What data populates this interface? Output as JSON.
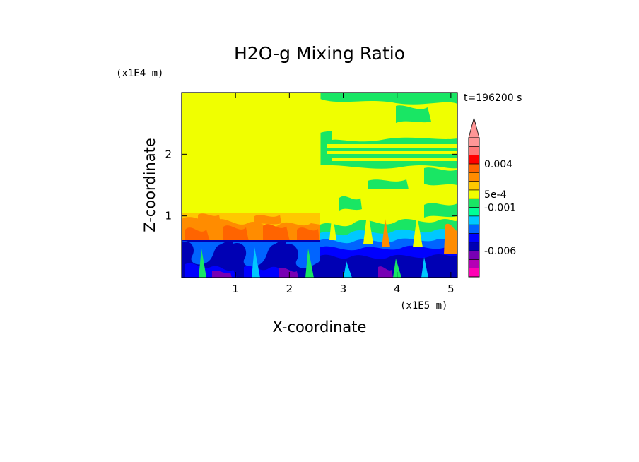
{
  "chart_data": {
    "type": "heatmap",
    "title": "H2O-g Mixing Ratio",
    "xlabel": "X-coordinate",
    "ylabel": "Z-coordinate",
    "x_scale_label": "(x1E5 m)",
    "y_scale_label": "(x1E4 m)",
    "time_label": "t=196200 s",
    "xlim": [
      0,
      5.12
    ],
    "ylim": [
      0,
      3.0
    ],
    "x_ticks": [
      {
        "value": 1,
        "label": "1"
      },
      {
        "value": 2,
        "label": "2"
      },
      {
        "value": 3,
        "label": "3"
      },
      {
        "value": 4,
        "label": "4"
      },
      {
        "value": 5,
        "label": "5"
      }
    ],
    "y_ticks": [
      {
        "value": 1,
        "label": "1"
      },
      {
        "value": 2,
        "label": "2"
      }
    ],
    "colorbar": {
      "levels": [
        {
          "color": "#ff00b4"
        },
        {
          "color": "#b400b4"
        },
        {
          "color": "#7800b4"
        },
        {
          "color": "#0000b4"
        },
        {
          "color": "#0000ff"
        },
        {
          "color": "#0064ff"
        },
        {
          "color": "#00c8ff"
        },
        {
          "color": "#00ff96"
        },
        {
          "color": "#19e664"
        },
        {
          "color": "#f0ff00"
        },
        {
          "color": "#ffc800"
        },
        {
          "color": "#ff8c00"
        },
        {
          "color": "#ff6400"
        },
        {
          "color": "#ff0000"
        },
        {
          "color": "#ff7878"
        },
        {
          "color": "#ff9696"
        }
      ],
      "labels": [
        {
          "label": "0.004",
          "level": 13
        },
        {
          "label": "5e-4",
          "level": 9.5
        },
        {
          "label": "-0.001",
          "level": 8
        },
        {
          "label": "-0.006",
          "level": 3
        }
      ],
      "extend_top": true
    },
    "regions": [
      {
        "name": "background",
        "x": [
          0,
          5.12
        ],
        "z": [
          0,
          3.0
        ],
        "color": "#f0ff00"
      },
      {
        "name": "upper-right-green",
        "x": [
          2.6,
          5.12
        ],
        "z": [
          1.5,
          3.0
        ],
        "color": "#19e664"
      },
      {
        "name": "lower-mixed-layer",
        "x": [
          0,
          5.12
        ],
        "z": [
          0,
          0.6
        ],
        "color": "#0000b4"
      },
      {
        "name": "boundary-orange",
        "x": [
          0,
          2.6
        ],
        "z": [
          0.55,
          1.0
        ],
        "color": "#ff8c00"
      }
    ]
  }
}
